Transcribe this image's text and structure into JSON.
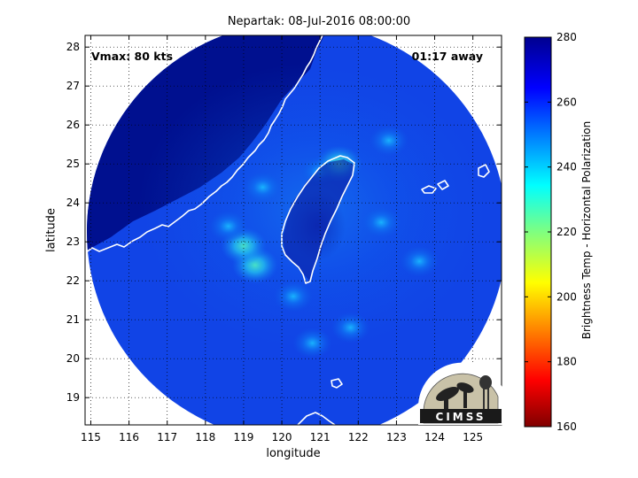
{
  "title": "Nepartak: 08-Jul-2016 08:00:00",
  "xlabel": "longitude",
  "ylabel": "latitude",
  "colorbar_label": "Brightness Temp - Horizontal Polarization",
  "vmax_text": "Vmax: 80 kts",
  "time_text": "01:17 away",
  "logo_text": "CIMSS",
  "chart_data": {
    "type": "heatmap",
    "x_ticks": [
      115,
      116,
      117,
      118,
      119,
      120,
      121,
      122,
      123,
      124,
      125
    ],
    "y_ticks": [
      19,
      20,
      21,
      22,
      23,
      24,
      25,
      26,
      27,
      28
    ],
    "xlim": [
      114.85,
      125.75
    ],
    "ylim": [
      18.3,
      28.3
    ],
    "colorbar": {
      "ticks": [
        160,
        180,
        200,
        220,
        240,
        260,
        280
      ],
      "range": [
        160,
        280
      ],
      "colormap": [
        "#800000",
        "#ff0000",
        "#ffff00",
        "#00ffff",
        "#0000ff",
        "#00008f"
      ]
    },
    "swath_center": [
      120.9,
      23.3
    ],
    "background_value": 275,
    "warm_features": [
      {
        "lon": 119.3,
        "lat": 22.4,
        "tb": 232
      },
      {
        "lon": 119.0,
        "lat": 22.9,
        "tb": 236
      },
      {
        "lon": 119.5,
        "lat": 24.4,
        "tb": 240
      },
      {
        "lon": 118.6,
        "lat": 23.4,
        "tb": 240
      },
      {
        "lon": 121.0,
        "lat": 24.8,
        "tb": 242
      },
      {
        "lon": 121.5,
        "lat": 25.0,
        "tb": 236
      },
      {
        "lon": 120.3,
        "lat": 21.6,
        "tb": 244
      },
      {
        "lon": 122.6,
        "lat": 23.5,
        "tb": 246
      },
      {
        "lon": 123.6,
        "lat": 22.5,
        "tb": 248
      },
      {
        "lon": 120.8,
        "lat": 20.4,
        "tb": 246
      },
      {
        "lon": 121.8,
        "lat": 20.8,
        "tb": 248
      },
      {
        "lon": 122.8,
        "lat": 25.6,
        "tb": 248
      }
    ]
  },
  "colors": {
    "background": "#ffffff",
    "coastline": "#ffffff",
    "grid": "#000000"
  }
}
